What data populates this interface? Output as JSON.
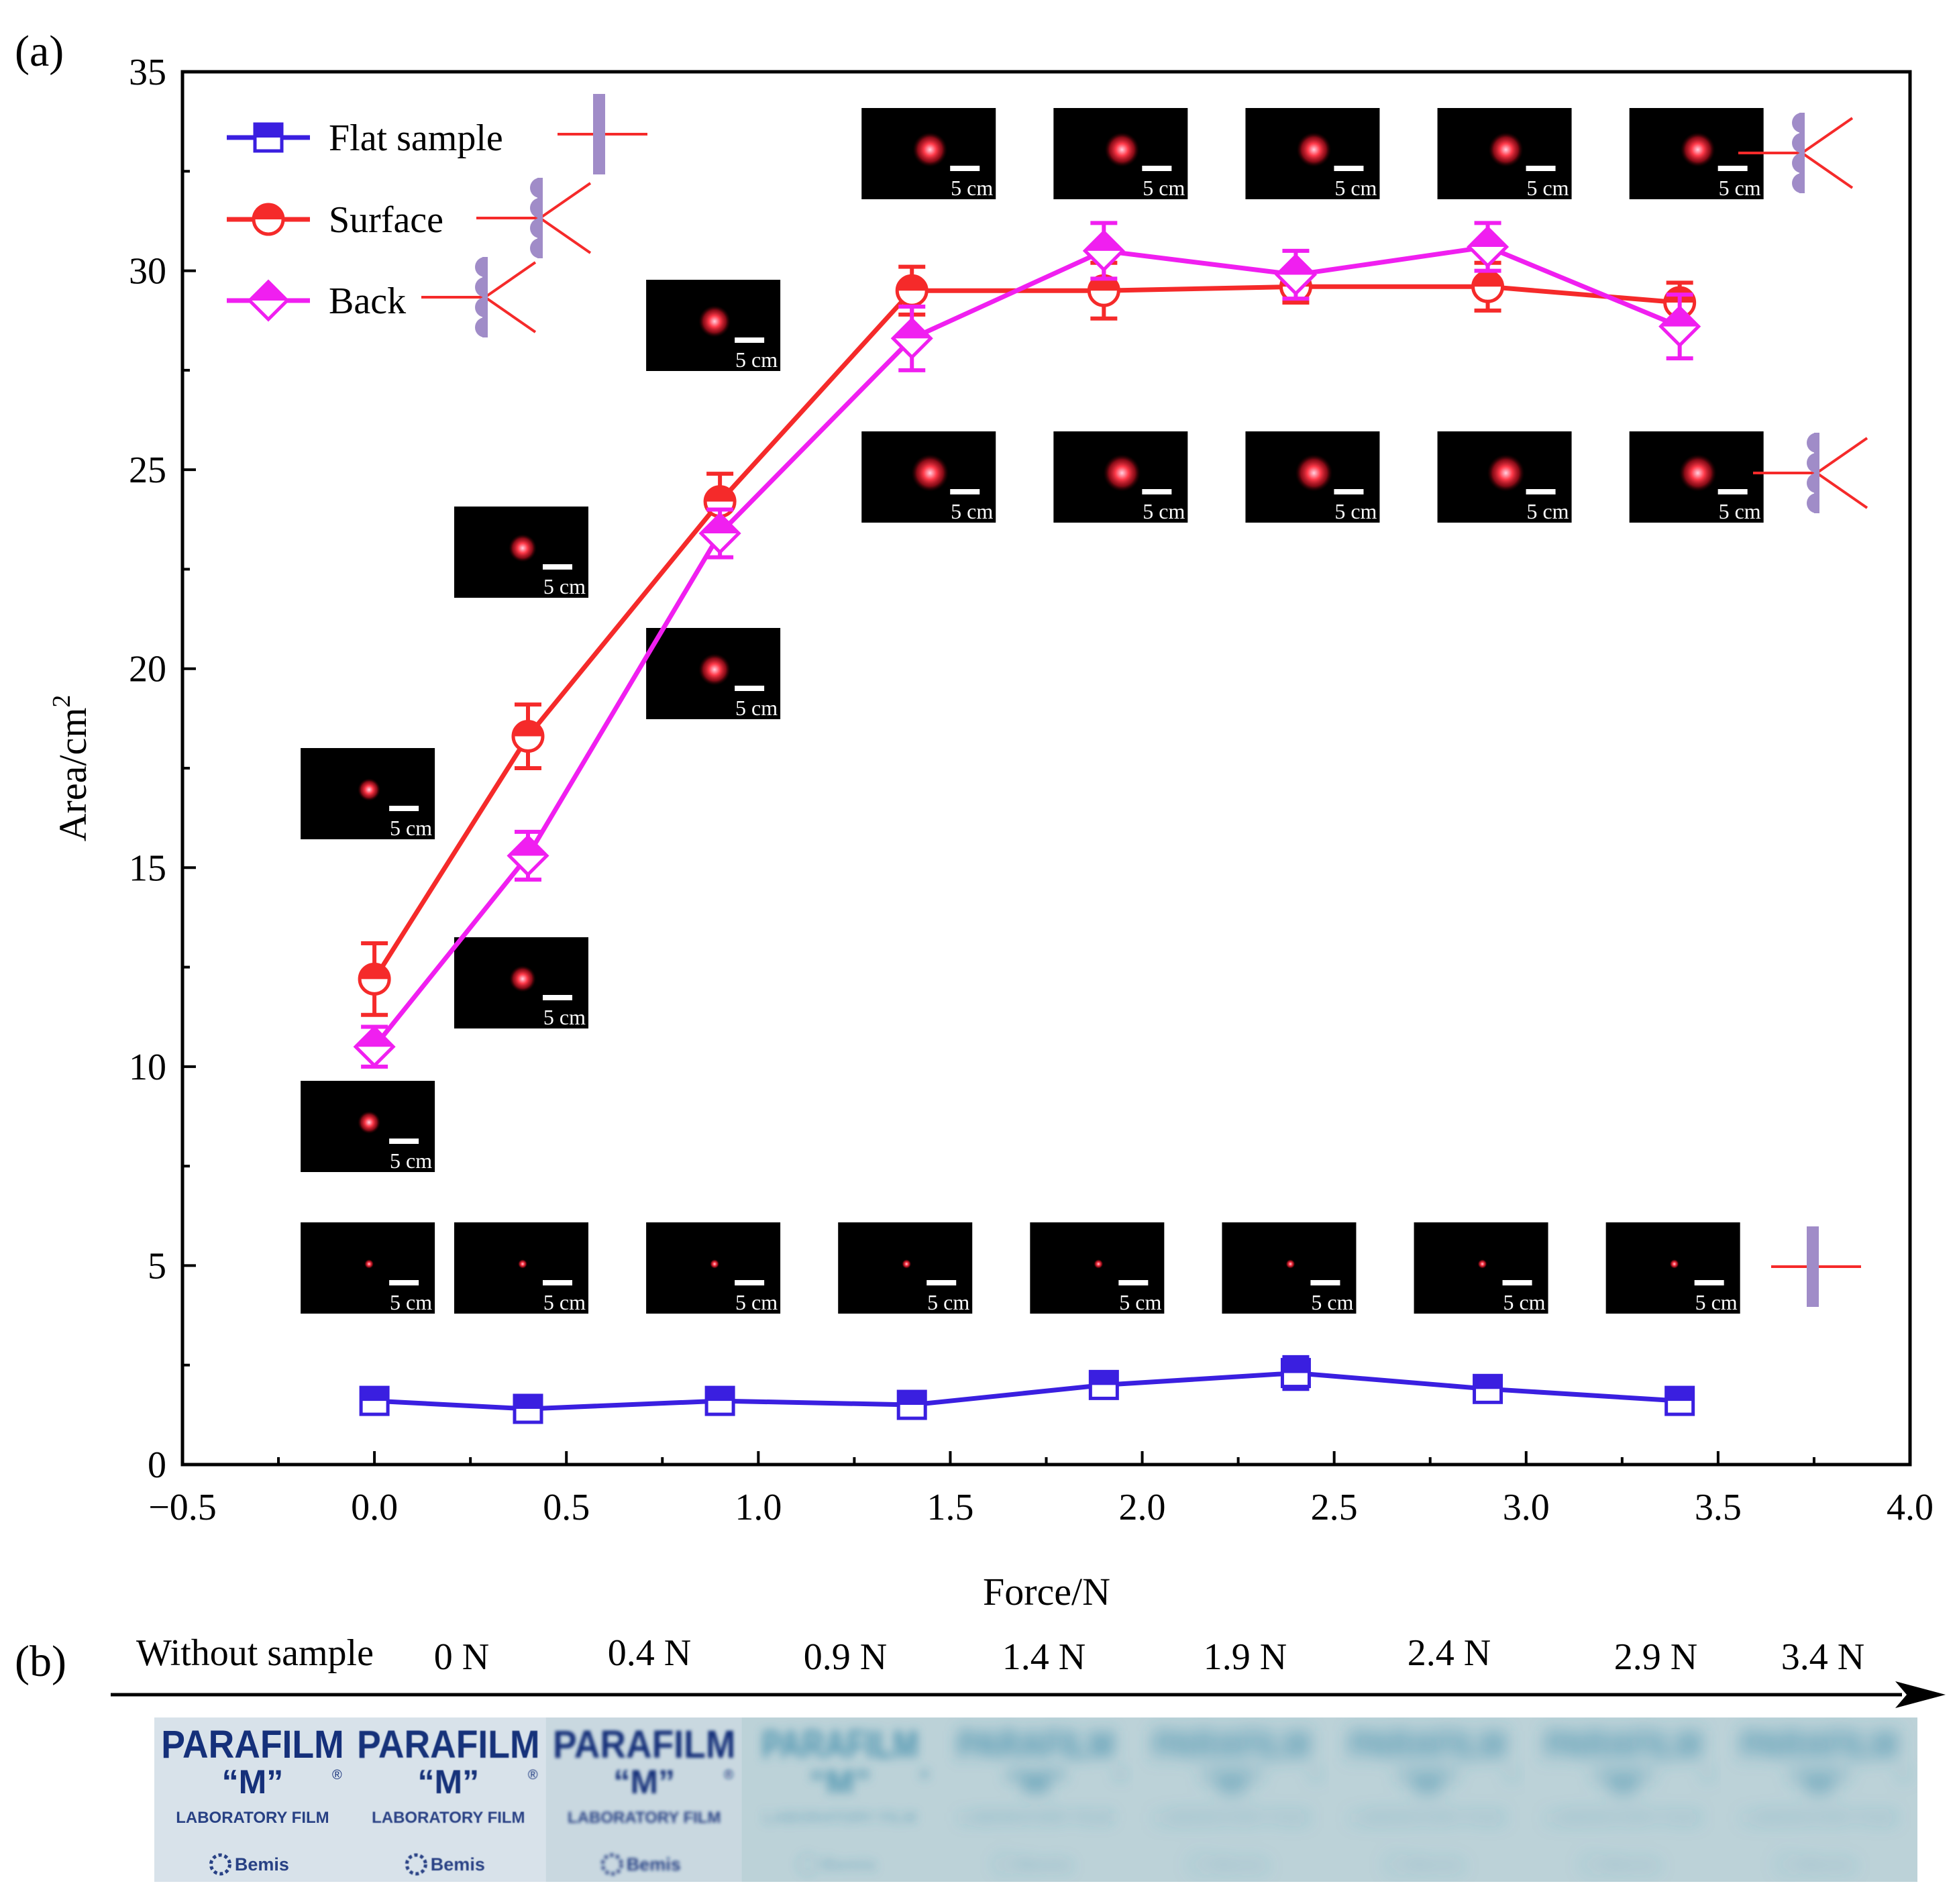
{
  "panel_labels": {
    "a": "(a)",
    "b": "(b)"
  },
  "colors": {
    "flat": "#3a1fe0",
    "surface": "#f52a2a",
    "back": "#f01ff0",
    "axis": "#000000",
    "sample_bar": "#a08cc8",
    "spot": "#ff2a2a",
    "film_text": "#15307a",
    "film_bg": "#d2dee6",
    "film_blur": "#3a8aaa"
  },
  "chart_data": {
    "type": "line",
    "title": "",
    "xlabel": "Force/N",
    "ylabel": "Area/cm",
    "ylabel_sup": "2",
    "xlim": [
      -0.5,
      4.0
    ],
    "ylim": [
      0,
      35
    ],
    "xticks": [
      -0.5,
      0.0,
      0.5,
      1.0,
      1.5,
      2.0,
      2.5,
      3.0,
      3.5,
      4.0
    ],
    "xtick_labels": [
      "−0.5",
      "0.0",
      "0.5",
      "1.0",
      "1.5",
      "2.0",
      "2.5",
      "3.0",
      "3.5",
      "4.0"
    ],
    "yticks": [
      0,
      5,
      10,
      15,
      20,
      25,
      30,
      35
    ],
    "ytick_labels": [
      "0",
      "5",
      "10",
      "15",
      "20",
      "25",
      "30",
      "35"
    ],
    "x": [
      0,
      0.4,
      0.9,
      1.4,
      1.9,
      2.4,
      2.9,
      3.4
    ],
    "series": [
      {
        "key": "flat",
        "name": "Flat sample",
        "marker": "square",
        "values": [
          1.6,
          1.4,
          1.6,
          1.5,
          2.0,
          2.3,
          1.9,
          1.6
        ],
        "errors": [
          0.3,
          0.3,
          0.3,
          0.3,
          0.3,
          0.4,
          0.3,
          0.3
        ]
      },
      {
        "key": "surface",
        "name": "Surface",
        "marker": "circle",
        "values": [
          12.2,
          18.3,
          24.2,
          29.5,
          29.5,
          29.6,
          29.6,
          29.2
        ],
        "errors": [
          0.9,
          0.8,
          0.7,
          0.6,
          0.7,
          0.4,
          0.6,
          0.5
        ]
      },
      {
        "key": "back",
        "name": "Back",
        "marker": "diamond",
        "values": [
          10.5,
          15.3,
          23.4,
          28.3,
          30.5,
          29.9,
          30.6,
          28.6
        ],
        "errors": [
          0.5,
          0.6,
          0.6,
          0.8,
          0.7,
          0.6,
          0.6,
          0.8
        ]
      }
    ],
    "legend_position": "top-left",
    "spot_scale_label": "5 cm",
    "spot_images_top_row_forces": [
      1.4,
      1.9,
      2.4,
      2.9,
      3.4
    ],
    "spot_images_surface_ramp_forces": [
      0.0,
      0.4,
      0.9
    ],
    "spot_images_back_row_forces": [
      0.0,
      0.4,
      0.9,
      1.4,
      1.9,
      2.4,
      2.9,
      3.4
    ],
    "spot_images_flat_row_forces": [
      0.0,
      0.4,
      0.9,
      1.4,
      1.9,
      2.4,
      2.9,
      3.4
    ]
  },
  "panel_b": {
    "labels": [
      "Without sample",
      "0 N",
      "0.4 N",
      "0.9 N",
      "1.4 N",
      "1.9 N",
      "2.4 N",
      "2.9 N",
      "3.4 N"
    ],
    "film_title": "PARAFILM",
    "film_m": "“M”",
    "film_reg": "®",
    "film_sub": "LABORATORY FILM",
    "film_brand": "Bemis",
    "blur_levels": [
      0,
      0.6,
      2.5,
      7,
      11,
      13,
      13,
      13,
      13
    ]
  }
}
